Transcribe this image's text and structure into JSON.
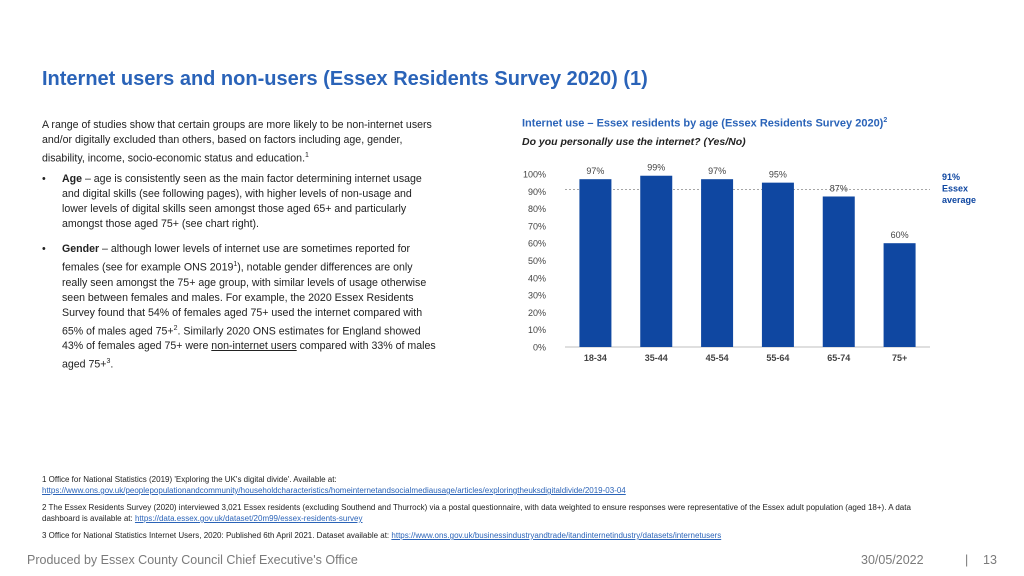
{
  "title": "Internet users and non-users (Essex Residents Survey 2020) (1)",
  "intro": {
    "text": "A range of studies show that certain groups are more likely to be non-internet users and/or digitally excluded than others, based on factors including age, gender, disability, income, socio-economic status and education.",
    "ref": "1"
  },
  "bullets": [
    {
      "marker": "•",
      "bold": "Age",
      "text": " – age is consistently seen as the main factor determining internet usage and digital skills (see following pages), with higher levels of non-usage and lower levels of digital skills seen amongst those aged 65+ and particularly amongst those aged 75+ (see chart right)."
    },
    {
      "marker": "•",
      "bold": "Gender",
      "text_a": " – although lower levels of internet use are sometimes reported for females (see for example ONS 2019",
      "ref_a": "1",
      "text_b": "), notable gender differences are only really seen amongst the 75+ age group, with similar levels of usage otherwise seen between females and males.  For example, the 2020 Essex Residents Survey found that 54% of females aged 75+ used the internet compared with 65% of males aged 75+",
      "ref_b": "2",
      "text_c": ". Similarly 2020 ONS estimates for England showed 43% of females aged 75+ were ",
      "underline": "non-internet users",
      "text_d": " compared with 33% of males aged 75+",
      "ref_c": "3",
      "text_e": "."
    }
  ],
  "chart_title": "Internet use – Essex residents by age (Essex Residents Survey 2020)",
  "chart_title_ref": "2",
  "chart_subtitle": "Do you personally use the internet? (Yes/No)",
  "chart_data": {
    "type": "bar",
    "categories": [
      "18-34",
      "35-44",
      "45-54",
      "55-64",
      "65-74",
      "75+"
    ],
    "values": [
      97,
      99,
      97,
      95,
      87,
      60
    ],
    "data_labels": [
      "97%",
      "99%",
      "97%",
      "95%",
      "87%",
      "60%"
    ],
    "y_ticks": [
      "0%",
      "10%",
      "20%",
      "30%",
      "40%",
      "50%",
      "60%",
      "70%",
      "80%",
      "90%",
      "100%"
    ],
    "ylim": [
      0,
      100
    ],
    "reference_line": {
      "value": 91,
      "label_lines": [
        "91%",
        "Essex",
        "average"
      ]
    },
    "bar_color": "#0f47a1",
    "reference_color": "#0f47a1",
    "grid": false
  },
  "footnotes": {
    "f1_text": "1 Office for National Statistics (2019) 'Exploring the UK's digital divide'. Available at:",
    "f1_link": "https://www.ons.gov.uk/peoplepopulationandcommunity/householdcharacteristics/homeinternetandsocialmediausage/articles/exploringtheuksdigitaldivide/2019-03-04",
    "f2_text": "2 The Essex Residents Survey (2020) interviewed 3,021 Essex residents (excluding Southend and Thurrock) via a postal questionnaire, with data weighted to ensure responses were representative of the Essex adult population (aged 18+).  A data dashboard is available at: ",
    "f2_link": "https://data.essex.gov.uk/dataset/20m99/essex-residents-survey",
    "f3_text": "3 Office for National Statistics Internet Users, 2020: Published 6th April 2021. Dataset available at: ",
    "f3_link": "https://www.ons.gov.uk/businessindustryandtrade/itandinternetindustry/datasets/internetusers"
  },
  "footer": {
    "producer": "Produced by Essex County Council Chief Executive's Office",
    "date": "30/05/2022",
    "separator": "|",
    "page": "13"
  }
}
